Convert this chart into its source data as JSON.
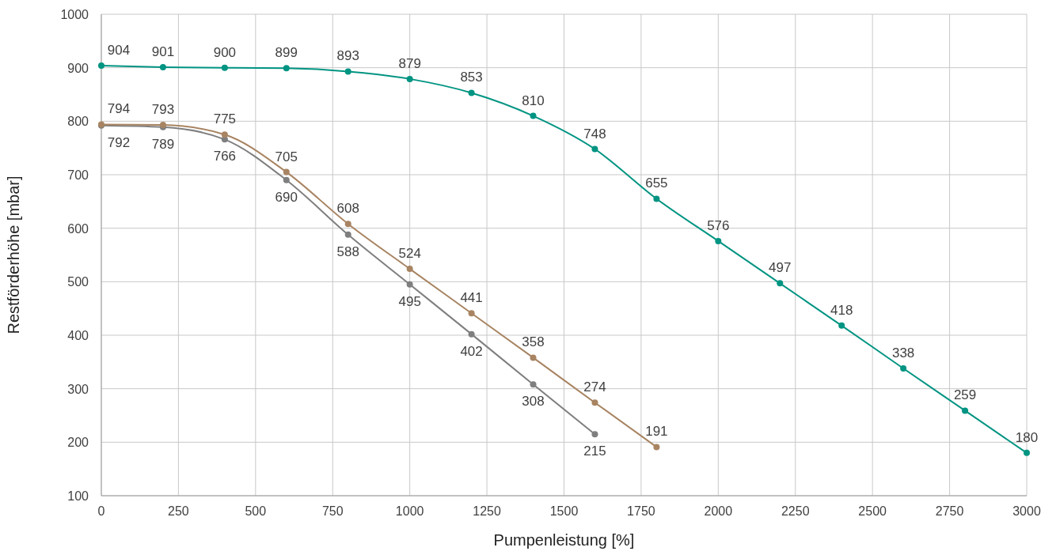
{
  "chart_data": {
    "type": "line",
    "xlabel": "Pumpenleistung [%]",
    "ylabel": "Restförderhöhe [mbar]",
    "xlim": [
      0,
      3000
    ],
    "xticks": [
      0,
      250,
      500,
      750,
      1000,
      1250,
      1500,
      1750,
      2000,
      2250,
      2500,
      2750,
      3000
    ],
    "ylim": [
      100,
      1000
    ],
    "yticks": [
      100,
      200,
      300,
      400,
      500,
      600,
      700,
      800,
      900,
      1000
    ],
    "grid": true,
    "marker": "circle",
    "line_style": "solid",
    "data_labels": true,
    "series": [
      {
        "color": "#7f7f7f",
        "x": [
          0,
          200,
          400,
          600,
          800,
          1000,
          1200,
          1400,
          1600
        ],
        "values": [
          792,
          789,
          766,
          690,
          588,
          495,
          402,
          308,
          215
        ]
      },
      {
        "color": "#a88462",
        "x": [
          0,
          200,
          400,
          600,
          800,
          1000,
          1200,
          1400,
          1600,
          1800
        ],
        "values": [
          794,
          793,
          775,
          705,
          608,
          524,
          441,
          358,
          274,
          191
        ]
      },
      {
        "color": "#009482",
        "x": [
          0,
          200,
          400,
          600,
          800,
          1000,
          1200,
          1400,
          1600,
          1800,
          2000,
          2200,
          2400,
          2600,
          2800,
          3000
        ],
        "values": [
          904,
          901,
          900,
          899,
          893,
          879,
          853,
          810,
          748,
          655,
          576,
          497,
          418,
          338,
          259,
          180
        ]
      }
    ]
  }
}
